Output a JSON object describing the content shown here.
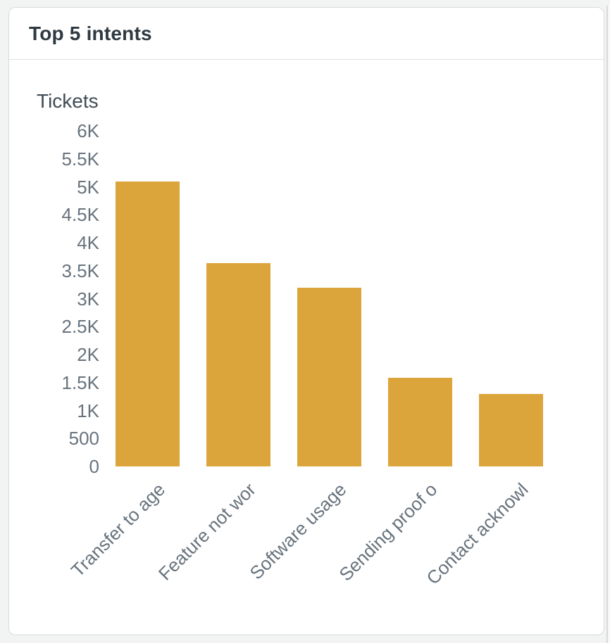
{
  "card": {
    "title": "Top 5 intents"
  },
  "chart_data": {
    "type": "bar",
    "title": "Top 5 intents",
    "ylabel": "Tickets",
    "xlabel": "",
    "categories": [
      "Transfer to age",
      "Feature not wor",
      "Software usage",
      "Sending proof o",
      "Contact acknowl"
    ],
    "values": [
      5100,
      3630,
      3190,
      1590,
      1300
    ],
    "y_ticks": [
      "6K",
      "5.5K",
      "5K",
      "4.5K",
      "4K",
      "3.5K",
      "3K",
      "2.5K",
      "2K",
      "1.5K",
      "1K",
      "500",
      "0"
    ],
    "ylim": [
      0,
      6000
    ],
    "grid": false,
    "legend_position": "none",
    "bar_color": "#DCA53C",
    "x_label_rotation_deg": -45,
    "x_labels_truncated": true
  },
  "colors": {
    "page_background": "#f2f3f3",
    "card_background": "#ffffff",
    "card_border": "#d8dcde",
    "header_divider": "#dcdfe1",
    "title_text": "#2f3941",
    "axis_title_text": "#414c55",
    "tick_text": "#68737d",
    "bar": "#DCA53C"
  }
}
